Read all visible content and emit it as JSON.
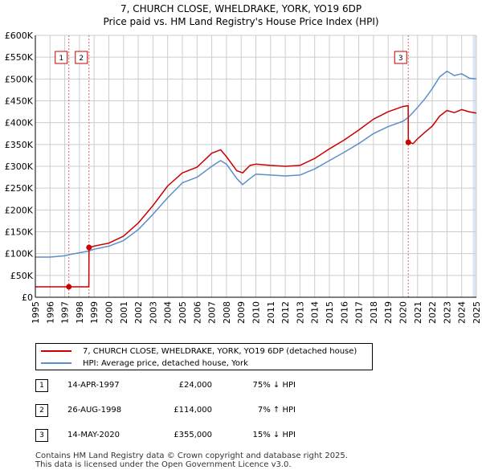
{
  "title_line1": "7, CHURCH CLOSE, WHELDRAKE, YORK, YO19 6DP",
  "title_line2": "Price paid vs. HM Land Registry's House Price Index (HPI)",
  "colors": {
    "property": "#cc0000",
    "hpi": "#5b8fcc",
    "grid": "#cccccc",
    "marker_line": "#e06666",
    "shade": "#dde6f5"
  },
  "chart_data": {
    "type": "line",
    "title": "Price paid vs. HM Land Registry's House Price Index (HPI)",
    "xlim": [
      1995,
      2025
    ],
    "ylim": [
      0,
      600000
    ],
    "y_ticks": [
      {
        "value": 0,
        "label": "£0"
      },
      {
        "value": 50000,
        "label": "£50K"
      },
      {
        "value": 100000,
        "label": "£100K"
      },
      {
        "value": 150000,
        "label": "£150K"
      },
      {
        "value": 200000,
        "label": "£200K"
      },
      {
        "value": 250000,
        "label": "£250K"
      },
      {
        "value": 300000,
        "label": "£300K"
      },
      {
        "value": 350000,
        "label": "£350K"
      },
      {
        "value": 400000,
        "label": "£400K"
      },
      {
        "value": 450000,
        "label": "£450K"
      },
      {
        "value": 500000,
        "label": "£500K"
      },
      {
        "value": 550000,
        "label": "£550K"
      },
      {
        "value": 600000,
        "label": "£600K"
      }
    ],
    "x_ticks": [
      "1995",
      "1996",
      "1997",
      "1998",
      "1999",
      "2000",
      "2001",
      "2002",
      "2003",
      "2004",
      "2005",
      "2006",
      "2007",
      "2008",
      "2009",
      "2010",
      "2011",
      "2012",
      "2013",
      "2014",
      "2015",
      "2016",
      "2017",
      "2018",
      "2019",
      "2020",
      "2021",
      "2022",
      "2023",
      "2024",
      "2025"
    ],
    "series": [
      {
        "name": "7, CHURCH CLOSE, WHELDRAKE, YORK, YO19 6DP (detached house)",
        "color": "#cc0000",
        "points": [
          [
            1995.0,
            24000
          ],
          [
            1997.28,
            24000
          ],
          [
            1998.64,
            24000
          ],
          [
            1998.65,
            114000
          ],
          [
            1999.0,
            117000
          ],
          [
            2000.0,
            124000
          ],
          [
            2001.0,
            140000
          ],
          [
            2002.0,
            170000
          ],
          [
            2003.0,
            210000
          ],
          [
            2004.0,
            255000
          ],
          [
            2005.0,
            285000
          ],
          [
            2006.0,
            298000
          ],
          [
            2007.0,
            330000
          ],
          [
            2007.6,
            338000
          ],
          [
            2008.0,
            322000
          ],
          [
            2008.7,
            290000
          ],
          [
            2009.1,
            285000
          ],
          [
            2009.6,
            302000
          ],
          [
            2010.0,
            305000
          ],
          [
            2011.0,
            302000
          ],
          [
            2012.0,
            300000
          ],
          [
            2013.0,
            302000
          ],
          [
            2014.0,
            318000
          ],
          [
            2015.0,
            340000
          ],
          [
            2016.0,
            360000
          ],
          [
            2017.0,
            383000
          ],
          [
            2018.0,
            408000
          ],
          [
            2019.0,
            425000
          ],
          [
            2020.0,
            437000
          ],
          [
            2020.36,
            439000
          ],
          [
            2020.37,
            355000
          ],
          [
            2020.7,
            352000
          ],
          [
            2021.0,
            363000
          ],
          [
            2021.5,
            378000
          ],
          [
            2022.0,
            392000
          ],
          [
            2022.5,
            415000
          ],
          [
            2023.0,
            428000
          ],
          [
            2023.5,
            423000
          ],
          [
            2024.0,
            430000
          ],
          [
            2024.5,
            425000
          ],
          [
            2025.0,
            422000
          ]
        ]
      },
      {
        "name": "HPI: Average price, detached house, York",
        "color": "#5b8fcc",
        "points": [
          [
            1995.0,
            92000
          ],
          [
            1996.0,
            92000
          ],
          [
            1997.0,
            95000
          ],
          [
            1997.5,
            99000
          ],
          [
            1998.0,
            102000
          ],
          [
            1998.65,
            106000
          ],
          [
            1999.0,
            110000
          ],
          [
            2000.0,
            117000
          ],
          [
            2001.0,
            130000
          ],
          [
            2002.0,
            155000
          ],
          [
            2003.0,
            190000
          ],
          [
            2004.0,
            228000
          ],
          [
            2005.0,
            262000
          ],
          [
            2006.0,
            275000
          ],
          [
            2007.0,
            300000
          ],
          [
            2007.6,
            313000
          ],
          [
            2008.0,
            305000
          ],
          [
            2008.7,
            272000
          ],
          [
            2009.1,
            258000
          ],
          [
            2009.6,
            272000
          ],
          [
            2010.0,
            282000
          ],
          [
            2011.0,
            280000
          ],
          [
            2012.0,
            278000
          ],
          [
            2013.0,
            280000
          ],
          [
            2014.0,
            294000
          ],
          [
            2015.0,
            313000
          ],
          [
            2016.0,
            332000
          ],
          [
            2017.0,
            352000
          ],
          [
            2018.0,
            375000
          ],
          [
            2019.0,
            391000
          ],
          [
            2020.0,
            403000
          ],
          [
            2020.37,
            412000
          ],
          [
            2021.0,
            435000
          ],
          [
            2021.5,
            455000
          ],
          [
            2022.0,
            478000
          ],
          [
            2022.5,
            505000
          ],
          [
            2023.0,
            518000
          ],
          [
            2023.5,
            508000
          ],
          [
            2024.0,
            512000
          ],
          [
            2024.5,
            502000
          ],
          [
            2025.0,
            500000
          ]
        ]
      }
    ],
    "sales": [
      {
        "id": "1",
        "x": 1997.28,
        "price": 24000
      },
      {
        "id": "2",
        "x": 1998.65,
        "price": 114000
      },
      {
        "id": "3",
        "x": 2020.37,
        "price": 355000
      }
    ],
    "shaded_range": [
      2024.75,
      2025.0
    ]
  },
  "legend": {
    "property_label": "7, CHURCH CLOSE, WHELDRAKE, YORK, YO19 6DP (detached house)",
    "hpi_label": "HPI: Average price, detached house, York"
  },
  "sales_table": [
    {
      "num": "1",
      "date": "14-APR-1997",
      "price": "£24,000",
      "hpi": "75% ↓ HPI"
    },
    {
      "num": "2",
      "date": "26-AUG-1998",
      "price": "£114,000",
      "hpi": "7% ↑ HPI"
    },
    {
      "num": "3",
      "date": "14-MAY-2020",
      "price": "£355,000",
      "hpi": "15% ↓ HPI"
    }
  ],
  "footer_line1": "Contains HM Land Registry data © Crown copyright and database right 2025.",
  "footer_line2": "This data is licensed under the Open Government Licence v3.0."
}
